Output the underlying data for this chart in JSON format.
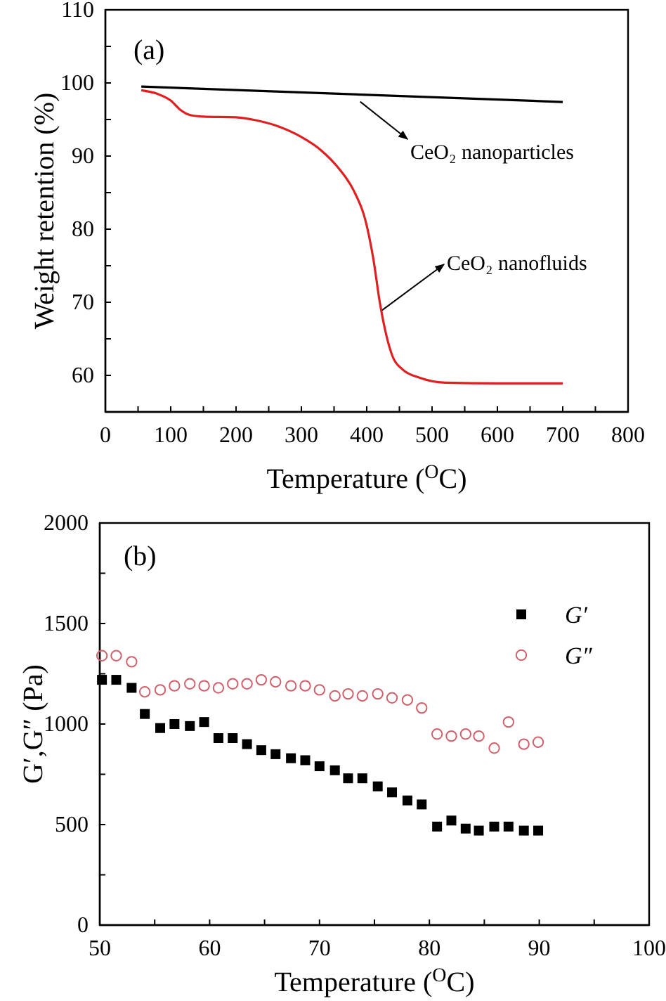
{
  "chart_data": [
    {
      "type": "line",
      "xlabel": "Temperature ($^{O}$C)",
      "ylabel": "Weight retention (%)",
      "annotations": [
        "(a)",
        {
          "text": "CeO₂ nanoparticles",
          "x": 390,
          "y": 98.4
        },
        {
          "text": "CeO₂ nanofluids",
          "x": 422,
          "y": 69
        }
      ],
      "xlim": [
        0,
        800
      ],
      "xticks": [
        0,
        {
          "value": 50,
          "label": null
        },
        100,
        {
          "value": 150,
          "label": null
        },
        200,
        {
          "value": 250,
          "label": null
        },
        300,
        {
          "value": 350,
          "label": null
        },
        400,
        {
          "value": 450,
          "label": null
        },
        500,
        {
          "value": 550,
          "label": null
        },
        600,
        {
          "value": 650,
          "label": null
        },
        700,
        {
          "value": 750,
          "label": null
        },
        800
      ],
      "ylim": [
        55,
        110
      ],
      "yticks": [
        60,
        {
          "value": 65,
          "label": null
        },
        70,
        {
          "value": 75,
          "label": null
        },
        80,
        {
          "value": 85,
          "label": null
        },
        90,
        {
          "value": 95,
          "label": null
        },
        100,
        {
          "value": 105,
          "label": null
        },
        110
      ],
      "legend": false,
      "marker": "none",
      "line_style": "solid",
      "series": [
        {
          "color": "#000000",
          "x": [
            55,
            700
          ],
          "values": [
            99.5,
            97.4
          ]
        },
        {
          "color": "#e02020",
          "x": [
            55,
            80,
            100,
            115,
            130,
            150,
            200,
            230,
            260,
            300,
            330,
            360,
            380,
            400,
            410,
            420,
            430,
            440,
            455,
            480,
            520,
            600,
            700
          ],
          "values": [
            99.0,
            98.5,
            97.6,
            96.3,
            95.6,
            95.4,
            95.3,
            94.9,
            94.2,
            92.6,
            90.8,
            88.0,
            85.3,
            80.5,
            76.0,
            70.0,
            65.5,
            62.5,
            60.8,
            59.7,
            59.0,
            58.9,
            58.9
          ]
        }
      ]
    },
    {
      "type": "scatter",
      "xlabel": "Temperature ($^{O}$C)",
      "ylabel": "G′,G″ (Pa)",
      "annotations": [
        "(b)"
      ],
      "xlim": [
        50,
        100
      ],
      "xticks": [
        50,
        {
          "value": 55,
          "label": null
        },
        60,
        {
          "value": 65,
          "label": null
        },
        70,
        {
          "value": 75,
          "label": null
        },
        80,
        {
          "value": 85,
          "label": null
        },
        90,
        {
          "value": 95,
          "label": null
        },
        100
      ],
      "ylim": [
        0,
        2000
      ],
      "yticks": [
        0,
        {
          "value": 250,
          "label": null
        },
        500,
        {
          "value": 750,
          "label": null
        },
        1000,
        {
          "value": 1250,
          "label": null
        },
        1500,
        {
          "value": 1750,
          "label": null
        },
        2000
      ],
      "legend": "top right",
      "series": [
        {
          "name": "G′",
          "color": "#000000",
          "marker": "square",
          "x": [
            50.2,
            51.5,
            52.9,
            54.1,
            55.5,
            56.8,
            58.2,
            59.5,
            60.8,
            62.1,
            63.4,
            64.7,
            66.0,
            67.4,
            68.7,
            70.0,
            71.4,
            72.6,
            73.9,
            75.3,
            76.6,
            78.0,
            79.3,
            80.7,
            82.0,
            83.3,
            84.5,
            85.9,
            87.2,
            88.6,
            89.9
          ],
          "values": [
            1220,
            1220,
            1180,
            1050,
            980,
            1000,
            990,
            1010,
            930,
            930,
            900,
            870,
            850,
            830,
            820,
            790,
            770,
            730,
            730,
            690,
            660,
            620,
            600,
            490,
            520,
            480,
            470,
            490,
            490,
            470,
            470
          ]
        },
        {
          "name": "G″",
          "color": "#d0606a",
          "marker": "circle",
          "x": [
            50.2,
            51.5,
            52.9,
            54.1,
            55.5,
            56.8,
            58.2,
            59.5,
            60.8,
            62.1,
            63.4,
            64.7,
            66.0,
            67.4,
            68.7,
            70.0,
            71.4,
            72.6,
            73.9,
            75.3,
            76.6,
            78.0,
            79.3,
            80.7,
            82.0,
            83.3,
            84.5,
            85.9,
            87.2,
            88.6,
            89.9
          ],
          "values": [
            1340,
            1340,
            1310,
            1160,
            1170,
            1190,
            1200,
            1190,
            1180,
            1200,
            1200,
            1220,
            1210,
            1190,
            1190,
            1170,
            1140,
            1150,
            1140,
            1150,
            1130,
            1120,
            1080,
            950,
            940,
            950,
            940,
            880,
            1010,
            900,
            910
          ]
        }
      ]
    }
  ]
}
